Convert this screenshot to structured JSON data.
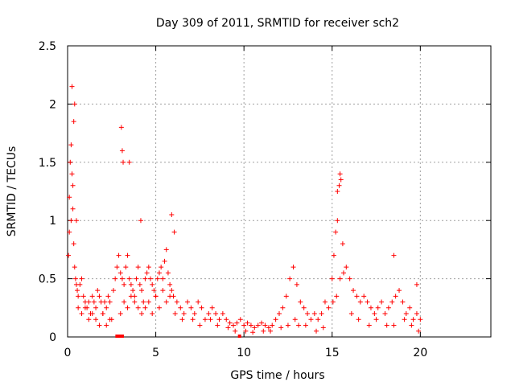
{
  "chart_data": {
    "type": "scatter",
    "title": "Day 309 of 2011, SRMTID for receiver sch2",
    "xlabel": "GPS time / hours",
    "ylabel": "SRMTID / TECUs",
    "xlim": [
      0,
      24
    ],
    "ylim": [
      0,
      2.5
    ],
    "x_ticks": [
      0,
      5,
      10,
      15,
      20
    ],
    "y_ticks": [
      0,
      0.5,
      1,
      1.5,
      2,
      2.5
    ],
    "x_tick_labels": [
      "0",
      "5",
      "10",
      "15",
      "20"
    ],
    "y_tick_labels": [
      "0",
      "0.5",
      "1",
      "1.5",
      "2",
      "2.5"
    ],
    "grid": true,
    "marker": "plus",
    "color": "#ff0000",
    "series": [
      {
        "name": "SRMTID",
        "x": [
          0.05,
          0.1,
          0.15,
          0.2,
          0.25,
          0.3,
          0.35,
          0.4,
          0.45,
          0.5,
          0.55,
          0.6,
          0.7,
          0.8,
          0.9,
          1.0,
          1.1,
          1.2,
          1.3,
          1.4,
          1.5,
          1.6,
          1.7,
          1.8,
          1.9,
          2.0,
          2.1,
          2.2,
          2.3,
          2.4,
          2.5,
          2.6,
          2.7,
          2.8,
          2.9,
          3.0,
          3.1,
          3.2,
          3.3,
          3.4,
          3.5,
          3.6,
          3.7,
          3.8,
          3.9,
          4.0,
          4.1,
          4.2,
          4.3,
          4.4,
          4.5,
          4.6,
          4.7,
          4.8,
          4.9,
          5.0,
          5.1,
          5.2,
          5.3,
          5.4,
          5.5,
          5.6,
          5.7,
          5.8,
          5.9,
          6.0,
          6.2,
          6.4,
          6.6,
          6.8,
          7.0,
          7.2,
          7.4,
          7.6,
          7.8,
          8.0,
          8.2,
          8.4,
          8.6,
          8.8,
          9.0,
          9.2,
          9.4,
          9.6,
          9.8,
          10.0,
          10.2,
          10.4,
          10.6,
          10.8,
          11.0,
          11.2,
          11.4,
          11.6,
          11.8,
          12.0,
          12.2,
          12.4,
          12.6,
          12.8,
          13.0,
          13.2,
          13.4,
          13.6,
          13.8,
          14.0,
          14.2,
          14.4,
          14.6,
          14.8,
          15.0,
          15.1,
          15.2,
          15.3,
          15.4,
          15.5,
          15.6,
          15.8,
          16.0,
          16.2,
          16.4,
          16.6,
          16.8,
          17.0,
          17.2,
          17.4,
          17.6,
          17.8,
          18.0,
          18.2,
          18.4,
          18.6,
          18.8,
          19.0,
          19.2,
          19.4,
          19.6,
          19.8,
          20.0,
          0.1,
          0.2,
          0.3,
          0.4,
          0.5,
          0.6,
          0.8,
          1.0,
          1.2,
          1.4,
          1.6,
          1.8,
          2.0,
          2.2,
          2.4,
          3.0,
          3.2,
          3.4,
          3.6,
          3.8,
          4.0,
          4.2,
          4.4,
          4.6,
          4.8,
          5.0,
          5.2,
          5.4,
          5.6,
          5.8,
          6.1,
          6.5,
          7.1,
          7.5,
          8.1,
          8.5,
          9.1,
          9.5,
          10.1,
          10.5,
          11.1,
          11.5,
          12.1,
          12.5,
          12.9,
          13.1,
          13.5,
          14.1,
          14.5,
          15.05,
          15.25,
          15.45,
          15.65,
          16.1,
          16.5,
          17.1,
          17.5,
          18.1,
          18.5,
          19.1,
          19.5,
          19.9,
          0.25,
          0.35,
          3.05,
          3.1,
          3.15,
          3.5,
          4.15,
          5.9,
          6.05,
          15.3,
          15.45,
          18.5,
          19.8
        ],
        "y": [
          0.7,
          1.2,
          1.5,
          1.65,
          1.4,
          1.1,
          0.8,
          0.6,
          0.5,
          0.45,
          0.4,
          0.35,
          0.45,
          0.5,
          0.35,
          0.3,
          0.25,
          0.3,
          0.2,
          0.35,
          0.3,
          0.25,
          0.4,
          0.35,
          0.3,
          0.2,
          0.3,
          0.25,
          0.35,
          0.3,
          0.15,
          0.4,
          0.5,
          0.6,
          0.7,
          0.55,
          0.5,
          0.45,
          0.6,
          0.7,
          0.5,
          0.45,
          0.4,
          0.35,
          0.5,
          0.6,
          0.45,
          0.4,
          0.3,
          0.5,
          0.55,
          0.6,
          0.5,
          0.45,
          0.4,
          0.35,
          0.5,
          0.55,
          0.6,
          0.5,
          0.65,
          0.75,
          0.55,
          0.45,
          0.4,
          0.35,
          0.3,
          0.25,
          0.2,
          0.3,
          0.25,
          0.2,
          0.3,
          0.25,
          0.15,
          0.2,
          0.25,
          0.2,
          0.15,
          0.2,
          0.15,
          0.12,
          0.1,
          0.12,
          0.15,
          0.1,
          0.12,
          0.1,
          0.08,
          0.1,
          0.12,
          0.1,
          0.08,
          0.1,
          0.15,
          0.2,
          0.25,
          0.35,
          0.5,
          0.6,
          0.45,
          0.3,
          0.25,
          0.2,
          0.15,
          0.2,
          0.15,
          0.2,
          0.3,
          0.25,
          0.5,
          0.7,
          0.9,
          1.0,
          1.3,
          1.35,
          0.8,
          0.6,
          0.5,
          0.4,
          0.35,
          0.3,
          0.35,
          0.3,
          0.25,
          0.2,
          0.25,
          0.3,
          0.2,
          0.25,
          0.3,
          0.35,
          0.4,
          0.3,
          0.2,
          0.25,
          0.15,
          0.2,
          0.15,
          0.9,
          1.0,
          1.3,
          2.0,
          1.0,
          0.25,
          0.2,
          0.25,
          0.15,
          0.2,
          0.15,
          0.1,
          0.2,
          0.1,
          0.15,
          0.2,
          0.3,
          0.25,
          0.35,
          0.3,
          0.25,
          0.2,
          0.25,
          0.3,
          0.2,
          0.35,
          0.25,
          0.4,
          0.3,
          0.35,
          0.2,
          0.15,
          0.15,
          0.1,
          0.15,
          0.1,
          0.08,
          0.05,
          0.05,
          0.04,
          0.05,
          0.05,
          0.08,
          0.1,
          0.15,
          0.1,
          0.1,
          0.05,
          0.08,
          0.3,
          0.35,
          0.5,
          0.55,
          0.2,
          0.15,
          0.1,
          0.15,
          0.1,
          0.1,
          0.15,
          0.1,
          0.05,
          2.15,
          1.85,
          1.8,
          1.6,
          1.5,
          1.5,
          1.0,
          1.05,
          0.9,
          1.25,
          1.4,
          0.7,
          0.45
        ]
      }
    ]
  }
}
